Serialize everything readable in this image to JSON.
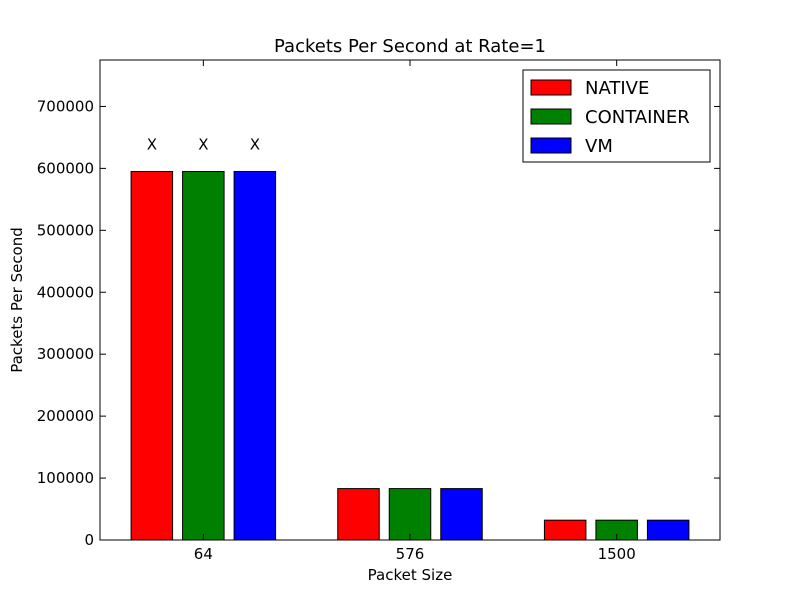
{
  "chart_data": {
    "type": "bar",
    "title": "Packets Per Second at Rate=1",
    "xlabel": "Packet Size",
    "ylabel": "Packets Per Second",
    "categories": [
      "64",
      "576",
      "1500"
    ],
    "ylim": [
      0,
      775000
    ],
    "yticks": [
      0,
      100000,
      200000,
      300000,
      400000,
      500000,
      600000,
      700000
    ],
    "grid": false,
    "legend_placement": "top-right",
    "series": [
      {
        "name": "NATIVE",
        "color": "#ff0000",
        "values": [
          595000,
          83000,
          32000
        ]
      },
      {
        "name": "CONTAINER",
        "color": "#008000",
        "values": [
          595000,
          83000,
          32000
        ]
      },
      {
        "name": "VM",
        "color": "#0000ff",
        "values": [
          595000,
          83000,
          32000
        ]
      }
    ],
    "annotations": [
      {
        "category": "64",
        "series": "NATIVE",
        "text": "X"
      },
      {
        "category": "64",
        "series": "CONTAINER",
        "text": "X"
      },
      {
        "category": "64",
        "series": "VM",
        "text": "X"
      }
    ]
  }
}
